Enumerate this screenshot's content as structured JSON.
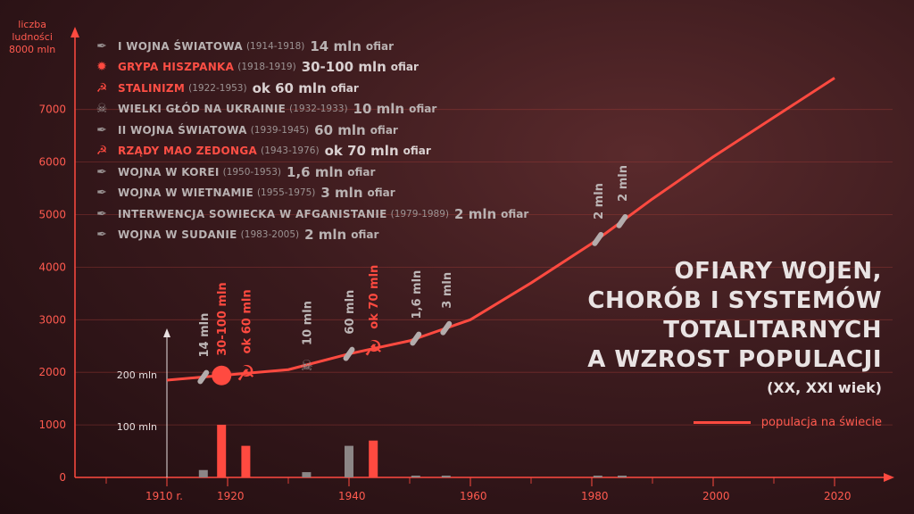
{
  "axis_title_lines": [
    "liczba",
    "ludności",
    "8000 mln"
  ],
  "y_ticks": [
    {
      "v": 1000,
      "label": "1000"
    },
    {
      "v": 2000,
      "label": "2000"
    },
    {
      "v": 3000,
      "label": "3000"
    },
    {
      "v": 4000,
      "label": "4000"
    },
    {
      "v": 5000,
      "label": "5000"
    },
    {
      "v": 6000,
      "label": "6000"
    },
    {
      "v": 7000,
      "label": "7000"
    },
    {
      "v": 0,
      "label": "0"
    }
  ],
  "x_ticks": [
    {
      "year": 1910,
      "label": "1910 r."
    },
    {
      "year": 1920,
      "label": "1920"
    },
    {
      "year": 1940,
      "label": "1940"
    },
    {
      "year": 1960,
      "label": "1960"
    },
    {
      "year": 1980,
      "label": "1980"
    },
    {
      "year": 2000,
      "label": "2000"
    },
    {
      "year": 2020,
      "label": "2020"
    }
  ],
  "victims_axis": {
    "label_200": "200 mln",
    "label_100": "100 mln"
  },
  "events": [
    {
      "name": "I WOJNA ŚWIATOWA",
      "years": "(1914-1918)",
      "value": "14 mln",
      "unit": "ofiar",
      "icon": "bomb-icon",
      "red": false
    },
    {
      "name": "GRYPA HISZPANKA",
      "years": "(1918-1919)",
      "value": "30-100 mln",
      "unit": "ofiar",
      "icon": "virus-icon",
      "red": true
    },
    {
      "name": "STALINIZM",
      "years": "(1922-1953)",
      "value": "ok 60 mln",
      "unit": "ofiar",
      "icon": "hammer-sickle-icon",
      "red": true
    },
    {
      "name": "WIELKI GŁÓD NA UKRAINIE",
      "years": "(1932-1933)",
      "value": "10 mln",
      "unit": "ofiar",
      "icon": "skull-icon",
      "red": false
    },
    {
      "name": "II WOJNA ŚWIATOWA",
      "years": "(1939-1945)",
      "value": "60 mln",
      "unit": "ofiar",
      "icon": "bomb-icon",
      "red": false
    },
    {
      "name": "RZĄDY MAO ZEDONGA",
      "years": "(1943-1976)",
      "value": "ok 70 mln",
      "unit": "ofiar",
      "icon": "hammer-sickle-icon",
      "red": true
    },
    {
      "name": "WOJNA W KOREI",
      "years": "(1950-1953)",
      "value": "1,6 mln",
      "unit": "ofiar",
      "icon": "bomb-icon",
      "red": false
    },
    {
      "name": "WOJNA W WIETNAMIE",
      "years": "(1955-1975)",
      "value": "3 mln",
      "unit": "ofiar",
      "icon": "bomb-icon",
      "red": false
    },
    {
      "name": "INTERWENCJA SOWIECKA W AFGANISTANIE",
      "years": "(1979-1989)",
      "value": "2 mln",
      "unit": "ofiar",
      "icon": "bomb-icon",
      "red": false
    },
    {
      "name": "WOJNA W SUDANIE",
      "years": "(1983-2005)",
      "value": "2 mln",
      "unit": "ofiar",
      "icon": "bomb-icon",
      "red": false
    }
  ],
  "title_lines": [
    "OFIARY WOJEN,",
    "CHORÓB I SYSTEMÓW",
    "TOTALITARNYCH",
    "A WZROST POPULACJI"
  ],
  "subtitle": "(XX, XXI wiek)",
  "legend_label": "populacja na świecie",
  "colors": {
    "accent": "#ff4a40",
    "grey": "#8c8686",
    "text": "#e9e3e3"
  },
  "chart_data": {
    "type": "line",
    "title": "OFIARY WOJEN, CHORÓB I SYSTEMÓW TOTALITARNYCH A WZROST POPULACJI (XX, XXI wiek)",
    "xlabel": "",
    "ylabel": "liczba ludności (mln)",
    "xlim": [
      1900,
      2030
    ],
    "ylim": [
      0,
      8000
    ],
    "series": [
      {
        "name": "populacja na świecie",
        "x": [
          1910,
          1920,
          1930,
          1940,
          1950,
          1960,
          1970,
          1980,
          1990,
          2000,
          2010,
          2020
        ],
        "values": [
          1850,
          1950,
          2050,
          2350,
          2600,
          3000,
          3700,
          4450,
          5300,
          6100,
          6850,
          7600
        ]
      }
    ],
    "victims_series": {
      "name": "ofiary (mln)",
      "scale_max": 200,
      "items": [
        {
          "label": "14 mln",
          "x": 1916,
          "value": 14,
          "color": "grey",
          "marker": "bomb-icon"
        },
        {
          "label": "30-100 mln",
          "x": 1919,
          "value": 100,
          "color": "red",
          "marker": "virus-icon"
        },
        {
          "label": "ok 60 mln",
          "x": 1923,
          "value": 60,
          "color": "red",
          "marker": "hammer-sickle-icon"
        },
        {
          "label": "10 mln",
          "x": 1933,
          "value": 10,
          "color": "grey",
          "marker": "skull-icon"
        },
        {
          "label": "60 mln",
          "x": 1940,
          "value": 60,
          "color": "grey",
          "marker": "bomb-icon"
        },
        {
          "label": "ok 70 mln",
          "x": 1944,
          "value": 70,
          "color": "red",
          "marker": "hammer-sickle-icon"
        },
        {
          "label": "1,6 mln",
          "x": 1951,
          "value": 1.6,
          "color": "grey",
          "marker": "bomb-icon"
        },
        {
          "label": "3 mln",
          "x": 1956,
          "value": 3,
          "color": "grey",
          "marker": "bomb-icon"
        },
        {
          "label": "2 mln",
          "x": 1981,
          "value": 2,
          "color": "grey",
          "marker": "bomb-icon"
        },
        {
          "label": "2 mln",
          "x": 1985,
          "value": 2,
          "color": "grey",
          "marker": "bomb-icon"
        }
      ]
    }
  }
}
